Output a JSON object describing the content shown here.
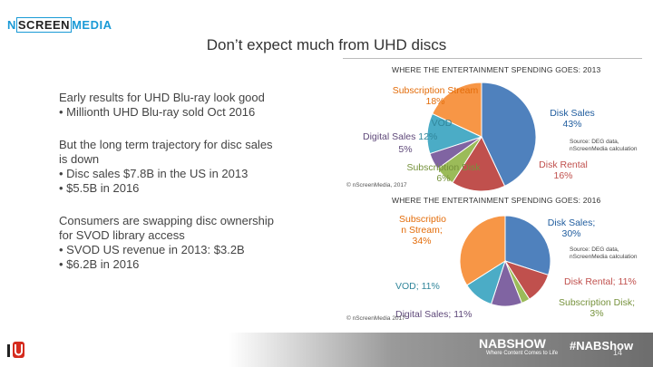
{
  "logo": {
    "part1": "N",
    "part2": "SCREEN",
    "part3": "MEDIA"
  },
  "slide_title": "Don’t expect much from UHD discs",
  "left": {
    "p1_line1": "Early results for UHD Blu-ray look good",
    "p1_b1": "•  Millionth UHD Blu-ray sold Oct 2016",
    "p2_line1": "But the long term trajectory for disc sales",
    "p2_line2": "is down",
    "p2_b1": "•  Disc sales $7.8B in the US in 2013",
    "p2_b2": "•  $5.5B in 2016",
    "p3_line1": "Consumers are swapping disc ownership",
    "p3_line2": "for SVOD library access",
    "p3_b1": "•  SVOD US revenue in 2013: $3.2B",
    "p3_b2": "•  $6.2B in 2016"
  },
  "chart_data": [
    {
      "type": "pie",
      "title": "WHERE THE ENTERTAINMENT SPENDING GOES: 2013",
      "categories": [
        "Disk Sales",
        "Disk Rental",
        "Subscription Disk",
        "Digital Sales",
        "VOD",
        "Subscription Stream"
      ],
      "values": [
        43,
        16,
        6,
        5,
        12,
        18
      ],
      "colors": [
        "#4f81bd",
        "#c0504d",
        "#9bbb59",
        "#8064a2",
        "#4bacc6",
        "#f79646"
      ],
      "labels": {
        "sub_stream": "Subscription Stream",
        "sub_stream_pct": "18%",
        "vod": "VOD",
        "digital": "Digital Sales",
        "vod_pct": "12%",
        "digital_pct": "5%",
        "sub_disk": "Subscription Disk",
        "sub_disk_pct": "6%",
        "disk_sales": "Disk Sales",
        "disk_sales_pct": "43%",
        "disk_rental": "Disk Rental",
        "disk_rental_pct": "16%"
      },
      "source_line1": "Source: DEG data,",
      "source_line2": "nScreenMedia calculation",
      "copyright": "© nScreenMedia, 2017"
    },
    {
      "type": "pie",
      "title": "WHERE THE ENTERTAINMENT SPENDING GOES: 2016",
      "categories": [
        "Disk Sales",
        "Disk Rental",
        "Subscription Disk",
        "Digital Sales",
        "VOD",
        "Subscription Stream"
      ],
      "values": [
        30,
        11,
        3,
        11,
        11,
        34
      ],
      "colors": [
        "#4f81bd",
        "#c0504d",
        "#9bbb59",
        "#8064a2",
        "#4bacc6",
        "#f79646"
      ],
      "labels": {
        "sub_stream_l1": "Subscriptio",
        "sub_stream_l2": "n Stream;",
        "sub_stream_pct": "34%",
        "disk_sales": "Disk Sales;",
        "disk_sales_pct": "30%",
        "vod": "VOD; 11%",
        "digital": "Digital Sales; 11%",
        "disk_rental": "Disk Rental; 11%",
        "sub_disk": "Subscription Disk;",
        "sub_disk_pct": "3%"
      },
      "source_line1": "Source: DEG data,",
      "source_line2": "nScreenMedia calculation",
      "copyright": "© nScreenMedia 2017"
    }
  ],
  "footer": {
    "nab": "NABSHOW",
    "nab_tagline": "Where Content Comes to Life",
    "hashtag": "#NABShow",
    "page": "14"
  }
}
